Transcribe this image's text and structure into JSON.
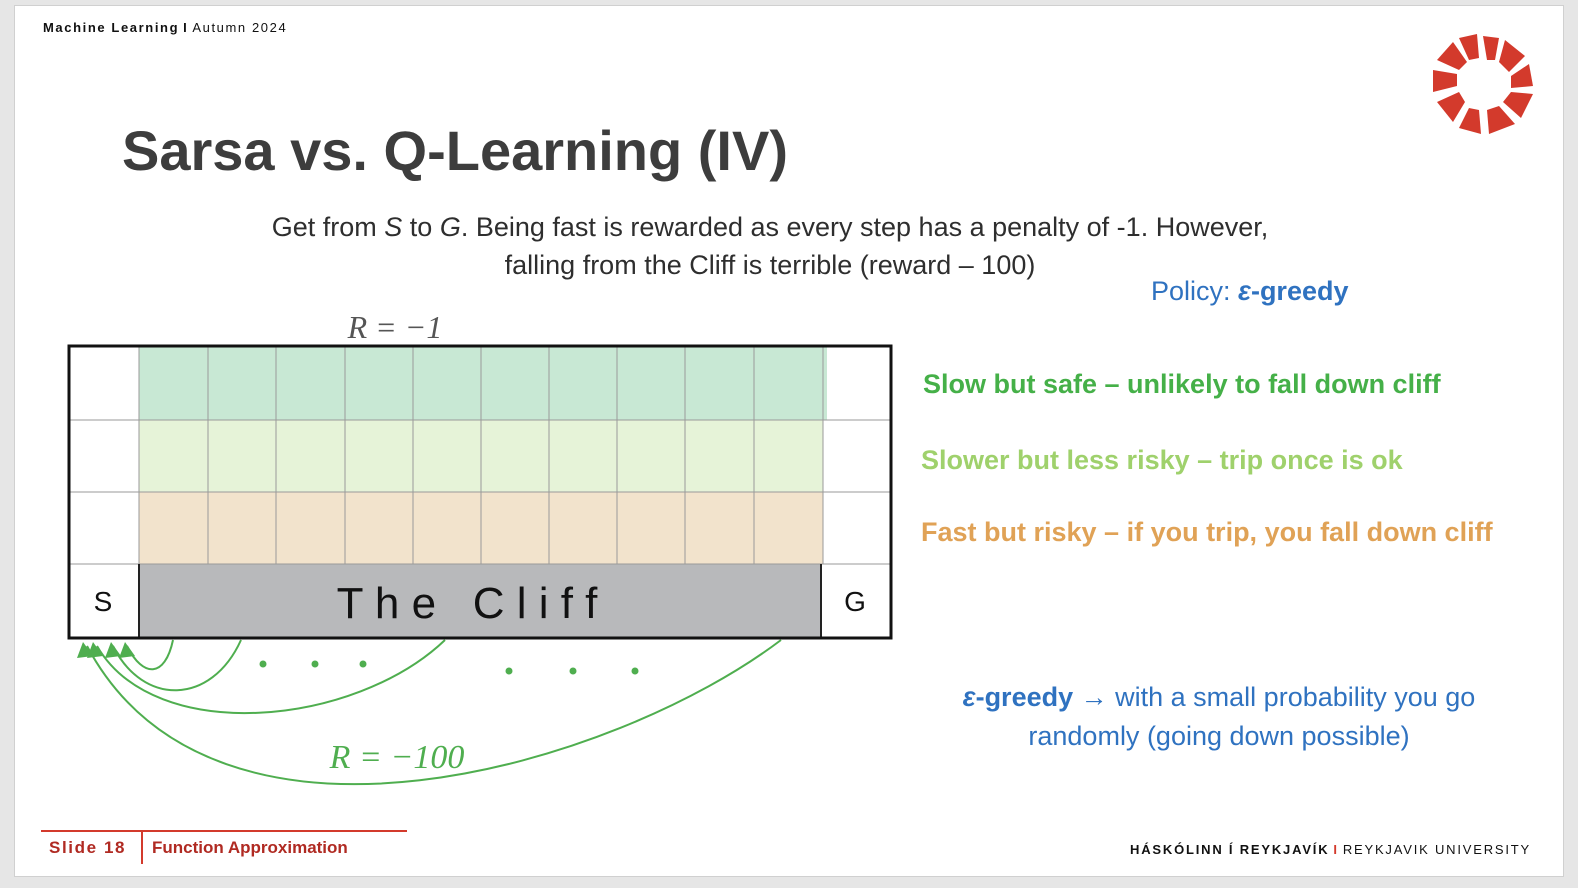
{
  "header": {
    "course": "Machine Learning",
    "separator": "I",
    "term": "Autumn 2024"
  },
  "title": "Sarsa vs. Q-Learning (IV)",
  "subtitle": {
    "part1": "Get from ",
    "s": "S",
    "part2": " to ",
    "g": "G",
    "part3": ". Being fast is rewarded as every step has a penalty of -1. However,",
    "line2": "falling from the Cliff is terrible (reward – 100)"
  },
  "policy": {
    "label": "Policy: ",
    "eps": "ε",
    "value": "-greedy"
  },
  "paths": {
    "safe": "Slow but safe –  unlikely to fall down cliff",
    "medium": "Slower but less risky – trip once is ok",
    "risky": "Fast but risky – if you trip, you fall down cliff"
  },
  "greedy_note": {
    "eps": "ε",
    "term": "-greedy",
    "arrow": " → ",
    "line1": "with a small probability you go",
    "line2": "randomly (going down possible)"
  },
  "grid": {
    "reward_step": "R = −1",
    "reward_cliff": "R = −100",
    "start": "S",
    "goal": "G",
    "cliff": "T h e   C l i f f"
  },
  "colors": {
    "safe_band": "#c8e8d4",
    "medium_band": "#e6f3d8",
    "risky_band": "#f2e3cc",
    "cliff": "#b8b9bb",
    "arrows": "#4fae4f",
    "brand_red": "#d33a2c",
    "blue": "#2f72c0"
  },
  "footer": {
    "slide_label": "Slide 18",
    "section": "Function Approximation",
    "university_is": "HÁSKÓLINN Í REYKJAVÍK",
    "separator": "I",
    "university_en": "REYKJAVIK UNIVERSITY"
  }
}
